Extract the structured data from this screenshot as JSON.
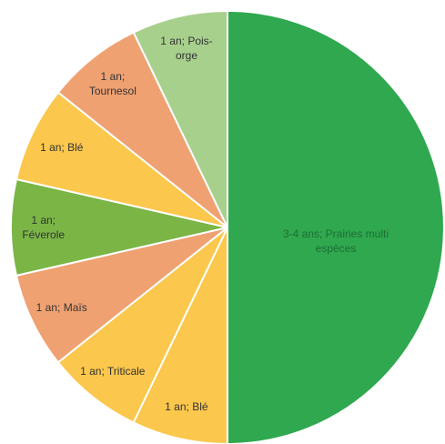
{
  "chart_data": {
    "type": "pie",
    "categories": [
      "3-4 ans; Prairies multi espèces",
      "1 an; Blé",
      "1 an; Triticale",
      "1 an; Maïs",
      "1 an; Féverole",
      "1 an; Blé",
      "1 an; Tournesol",
      "1 an; Pois-orge"
    ],
    "values": [
      50,
      7.14,
      7.14,
      7.14,
      7.14,
      7.14,
      7.14,
      7.14
    ],
    "colors": [
      "#2fa84f",
      "#fbc74c",
      "#fbc74c",
      "#f0a172",
      "#7ab546",
      "#fbc74c",
      "#f0a172",
      "#a8d08d"
    ]
  }
}
